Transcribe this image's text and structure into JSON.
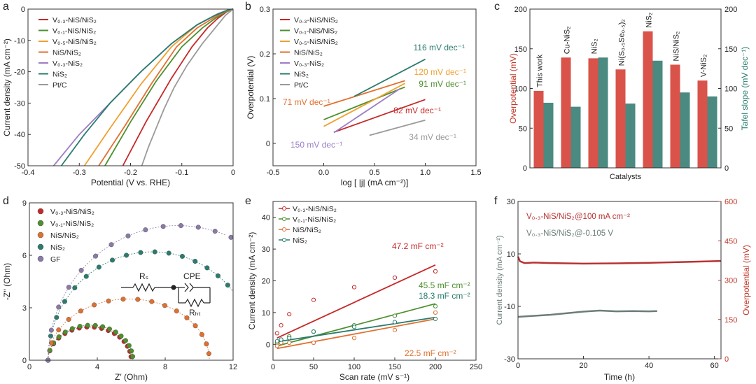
{
  "colors": {
    "v03": "#c62828",
    "v01": "#4e8f2e",
    "v05": "#f0a030",
    "nisnis2": "#e07030",
    "v03nis2": "#9b7ec8",
    "nis2": "#2a7c6e",
    "ptc": "#9a9a9a",
    "gf": "#8a7aa8",
    "bar_red": "#d9534a",
    "bar_teal": "#4a8a80",
    "axis_red": "#c0392b",
    "axis_teal": "#2a7c6e",
    "stability_red": "#b83232",
    "stability_gray": "#6b7d7a"
  },
  "chart_data": [
    {
      "panel": "a",
      "type": "line",
      "xlabel": "Potential (V vs. RHE)",
      "ylabel": "Current density (mA cm⁻²)",
      "xlim": [
        -0.4,
        0
      ],
      "ylim": [
        -50,
        0
      ],
      "xticks": [
        "-0.4",
        "-0.3",
        "-0.2",
        "-0.1",
        "0"
      ],
      "yticks": [
        "0",
        "-10",
        "-20",
        "-30",
        "-40",
        "-50"
      ],
      "legend_position": "top-left",
      "series": [
        {
          "name": "V₀.₃-NiS/NiS₂",
          "color_key": "v03",
          "x": [
            -0.215,
            -0.17,
            -0.12,
            -0.08,
            -0.05,
            -0.03,
            -0.012,
            0
          ],
          "y": [
            -50,
            -36,
            -22,
            -12,
            -6,
            -3,
            -0.8,
            0
          ]
        },
        {
          "name": "V₀.₁-NiS/NiS₂",
          "color_key": "v01",
          "x": [
            -0.25,
            -0.2,
            -0.15,
            -0.1,
            -0.06,
            -0.035,
            -0.015,
            0
          ],
          "y": [
            -50,
            -36,
            -23,
            -12,
            -6,
            -3,
            -1,
            0
          ]
        },
        {
          "name": "V₀.₅-NiS/NiS₂",
          "color_key": "v05",
          "x": [
            -0.29,
            -0.24,
            -0.18,
            -0.12,
            -0.07,
            -0.035,
            -0.015,
            0
          ],
          "y": [
            -50,
            -38,
            -24,
            -12,
            -5,
            -2,
            -0.6,
            0
          ]
        },
        {
          "name": "NiS/NiS₂",
          "color_key": "nisnis2",
          "x": [
            -0.262,
            -0.21,
            -0.16,
            -0.11,
            -0.07,
            -0.035,
            -0.015,
            0
          ],
          "y": [
            -50,
            -37,
            -24,
            -12,
            -6,
            -2.5,
            -0.8,
            0
          ]
        },
        {
          "name": "V₀.₃-NiS₂",
          "color_key": "v03nis2",
          "x": [
            -0.35,
            -0.3,
            -0.24,
            -0.18,
            -0.12,
            -0.07,
            -0.03,
            -0.01,
            0
          ],
          "y": [
            -50,
            -40,
            -30,
            -20,
            -11,
            -5,
            -1.5,
            -0.3,
            0
          ]
        },
        {
          "name": "NiS₂",
          "color_key": "nis2",
          "x": [
            -0.335,
            -0.29,
            -0.24,
            -0.18,
            -0.12,
            -0.07,
            -0.035,
            -0.01,
            0
          ],
          "y": [
            -50,
            -40,
            -30,
            -20,
            -11,
            -5,
            -2,
            -0.3,
            0
          ]
        },
        {
          "name": "Pt/C",
          "color_key": "ptc",
          "x": [
            -0.178,
            -0.165,
            -0.15,
            -0.135,
            -0.115,
            -0.09,
            -0.06,
            -0.035,
            -0.015,
            0
          ],
          "y": [
            -50,
            -44,
            -38,
            -32,
            -25,
            -18,
            -11,
            -6,
            -2,
            0
          ]
        }
      ]
    },
    {
      "panel": "b",
      "type": "line",
      "xlabel": "log [ |j| (mA cm⁻²)]",
      "ylabel": "Overpotential (V)",
      "xlim": [
        -0.5,
        1.5
      ],
      "ylim": [
        -0.05,
        0.3
      ],
      "xticks": [
        "-0.5",
        "0.0",
        "0.5",
        "1.0",
        "1.5"
      ],
      "yticks": [
        "0",
        "0.1",
        "0.2",
        "0.3"
      ],
      "legend_position": "top-left",
      "series": [
        {
          "name": "V₀.₃-NiS/NiS₂",
          "color_key": "v03",
          "x": [
            0.1,
            1.0
          ],
          "y": [
            0.025,
            0.098
          ],
          "tafel": "82 mV dec⁻¹"
        },
        {
          "name": "V₀.₁-NiS/NiS₂",
          "color_key": "v01",
          "x": [
            0.0,
            0.8
          ],
          "y": [
            0.053,
            0.126
          ],
          "tafel": "91 mV dec⁻¹"
        },
        {
          "name": "V₀.₅-NiS/NiS₂",
          "color_key": "v05",
          "x": [
            0.0,
            0.8
          ],
          "y": [
            0.038,
            0.134
          ],
          "tafel": "120 mV dec⁻¹"
        },
        {
          "name": "NiS/NiS₂",
          "color_key": "nisnis2",
          "x": [
            0.0,
            0.8
          ],
          "y": [
            0.083,
            0.14
          ],
          "tafel": "71 mV dec⁻¹"
        },
        {
          "name": "V₀.₃-NiS₂",
          "color_key": "v03nis2",
          "x": [
            0.1,
            0.75
          ],
          "y": [
            0.024,
            0.122
          ],
          "tafel": "150 mV dec⁻¹"
        },
        {
          "name": "NiS₂",
          "color_key": "nis2",
          "x": [
            0.3,
            1.0
          ],
          "y": [
            0.105,
            0.188
          ],
          "tafel": "116 mV dec⁻¹"
        },
        {
          "name": "Pt/C",
          "color_key": "ptc",
          "x": [
            0.45,
            1.0
          ],
          "y": [
            0.018,
            0.052
          ],
          "tafel": "34 mV dec⁻¹"
        }
      ]
    },
    {
      "panel": "c",
      "type": "bar",
      "xlabel": "Catalysts",
      "ylabel": "Overpotential (mV)",
      "ylabel_right": "Tafel slope (mV dec⁻¹)",
      "ylim": [
        0,
        200
      ],
      "ylim_right": [
        0,
        200
      ],
      "yticks": [
        "0",
        "50",
        "100",
        "150",
        "200"
      ],
      "categories": [
        "This work",
        "Cu-NiS₂",
        "NiS₂",
        "Ni(S₀.₅Se₀.₅)₂",
        "NiS₂",
        "NiS/NiS₂",
        "V-NiS₂"
      ],
      "series": [
        {
          "name": "Overpotential",
          "color_key": "bar_red",
          "values": [
            97,
            139,
            138,
            124,
            172,
            130,
            110
          ]
        },
        {
          "name": "Tafel slope",
          "color_key": "bar_teal",
          "values": [
            82,
            77,
            139,
            81,
            135,
            95,
            90
          ]
        }
      ]
    },
    {
      "panel": "d",
      "type": "scatter",
      "xlabel": "Z′ (Ohm)",
      "ylabel": "-Z′′ (Ohm)",
      "xlim": [
        0,
        12
      ],
      "ylim": [
        0,
        9
      ],
      "xticks": [
        "0",
        "4",
        "8",
        "12"
      ],
      "yticks": [
        "0",
        "3",
        "6",
        "9"
      ],
      "legend_position": "top-left",
      "series": [
        {
          "name": "V₀.₃-NiS/NiS₂",
          "color_key": "v03",
          "arc": [
            1.1,
            6.0,
            1.9
          ]
        },
        {
          "name": "V₀.₁-NiS/NiS₂",
          "color_key": "v01",
          "arc": [
            1.1,
            6.1,
            2.0
          ]
        },
        {
          "name": "NiS/NiS₂",
          "color_key": "nisnis2",
          "arc": [
            1.1,
            10.6,
            3.5
          ]
        },
        {
          "name": "NiS₂",
          "color_key": "nis2",
          "arc": [
            1.1,
            13.4,
            6.2
          ]
        },
        {
          "name": "GF",
          "color_key": "gf",
          "arc": [
            1.1,
            16.4,
            7.7
          ]
        }
      ],
      "circuit": {
        "labels": [
          "Rₛ",
          "CPE",
          "Rₕₜ"
        ]
      }
    },
    {
      "panel": "e",
      "type": "scatter",
      "xlabel": "Scan rate (mV s⁻¹)",
      "ylabel": "Current density (mA cm⁻²)",
      "xlim": [
        0,
        250
      ],
      "ylim": [
        -5,
        45
      ],
      "xticks": [
        "0",
        "50",
        "100",
        "150",
        "200",
        "250"
      ],
      "yticks": [
        "0",
        "10",
        "20",
        "30",
        "40"
      ],
      "legend_position": "top-left",
      "x": [
        5,
        10,
        20,
        50,
        100,
        150,
        200
      ],
      "series": [
        {
          "name": "V₀.₃-NiS/NiS₂",
          "color_key": "v03",
          "values": [
            3.5,
            6,
            9.5,
            14,
            18,
            21,
            23
          ],
          "fit": [
            2,
            25
          ],
          "label": "47.2 mF cm⁻²"
        },
        {
          "name": "V₀.₁-NiS/NiS₂",
          "color_key": "v01",
          "values": [
            0.5,
            1.5,
            2.5,
            4,
            6,
            9,
            12
          ],
          "fit": [
            -0.5,
            12.8
          ],
          "label": "45.5 mF cm⁻²"
        },
        {
          "name": "NiS/NiS₂",
          "color_key": "nisnis2",
          "values": [
            -0.5,
            0.5,
            0.5,
            0.5,
            2,
            4.5,
            10
          ],
          "fit": [
            -1.3,
            8
          ],
          "label": "22.5 mF cm⁻²"
        },
        {
          "name": "NiS₂",
          "color_key": "nis2",
          "values": [
            1,
            1.5,
            2,
            4,
            5.5,
            7,
            8
          ],
          "fit": [
            0.8,
            8.5
          ],
          "label": "18.3 mF cm⁻²"
        }
      ]
    },
    {
      "panel": "f",
      "type": "line",
      "xlabel": "Time (h)",
      "ylabel": "Current density (mA cm⁻²)",
      "ylabel_right": "Overpotential (mV)",
      "xlim": [
        0,
        62
      ],
      "ylim": [
        -30,
        30
      ],
      "ylim_right": [
        0,
        600
      ],
      "xticks": [
        "0",
        "20",
        "40",
        "60"
      ],
      "yticks": [
        "30",
        "10",
        "-10",
        "-30"
      ],
      "yticks_right": [
        "600",
        "450",
        "300",
        "150",
        "0"
      ],
      "series": [
        {
          "name": "V₀.₃-NiS/NiS₂@100 mA cm⁻²",
          "color_key": "stability_red",
          "axis": "right",
          "x": [
            0,
            0.6,
            2,
            5,
            10,
            20,
            30,
            40,
            50,
            62
          ],
          "y": [
            390,
            372,
            365,
            367,
            365,
            363,
            364,
            366,
            369,
            373
          ]
        },
        {
          "name": "V₀.₃-NiS/NiS₂@-0.105 V",
          "color_key": "stability_gray",
          "axis": "left",
          "x": [
            0,
            5,
            10,
            15,
            20,
            25,
            30,
            35,
            40,
            42.5
          ],
          "y": [
            -14,
            -13.6,
            -13.2,
            -12.6,
            -12,
            -11.6,
            -11.9,
            -11.8,
            -11.9,
            -11.8
          ]
        }
      ]
    }
  ],
  "panels": {
    "a": {
      "letter": "a"
    },
    "b": {
      "letter": "b"
    },
    "c": {
      "letter": "c"
    },
    "d": {
      "letter": "d"
    },
    "e": {
      "letter": "e"
    },
    "f": {
      "letter": "f"
    }
  }
}
